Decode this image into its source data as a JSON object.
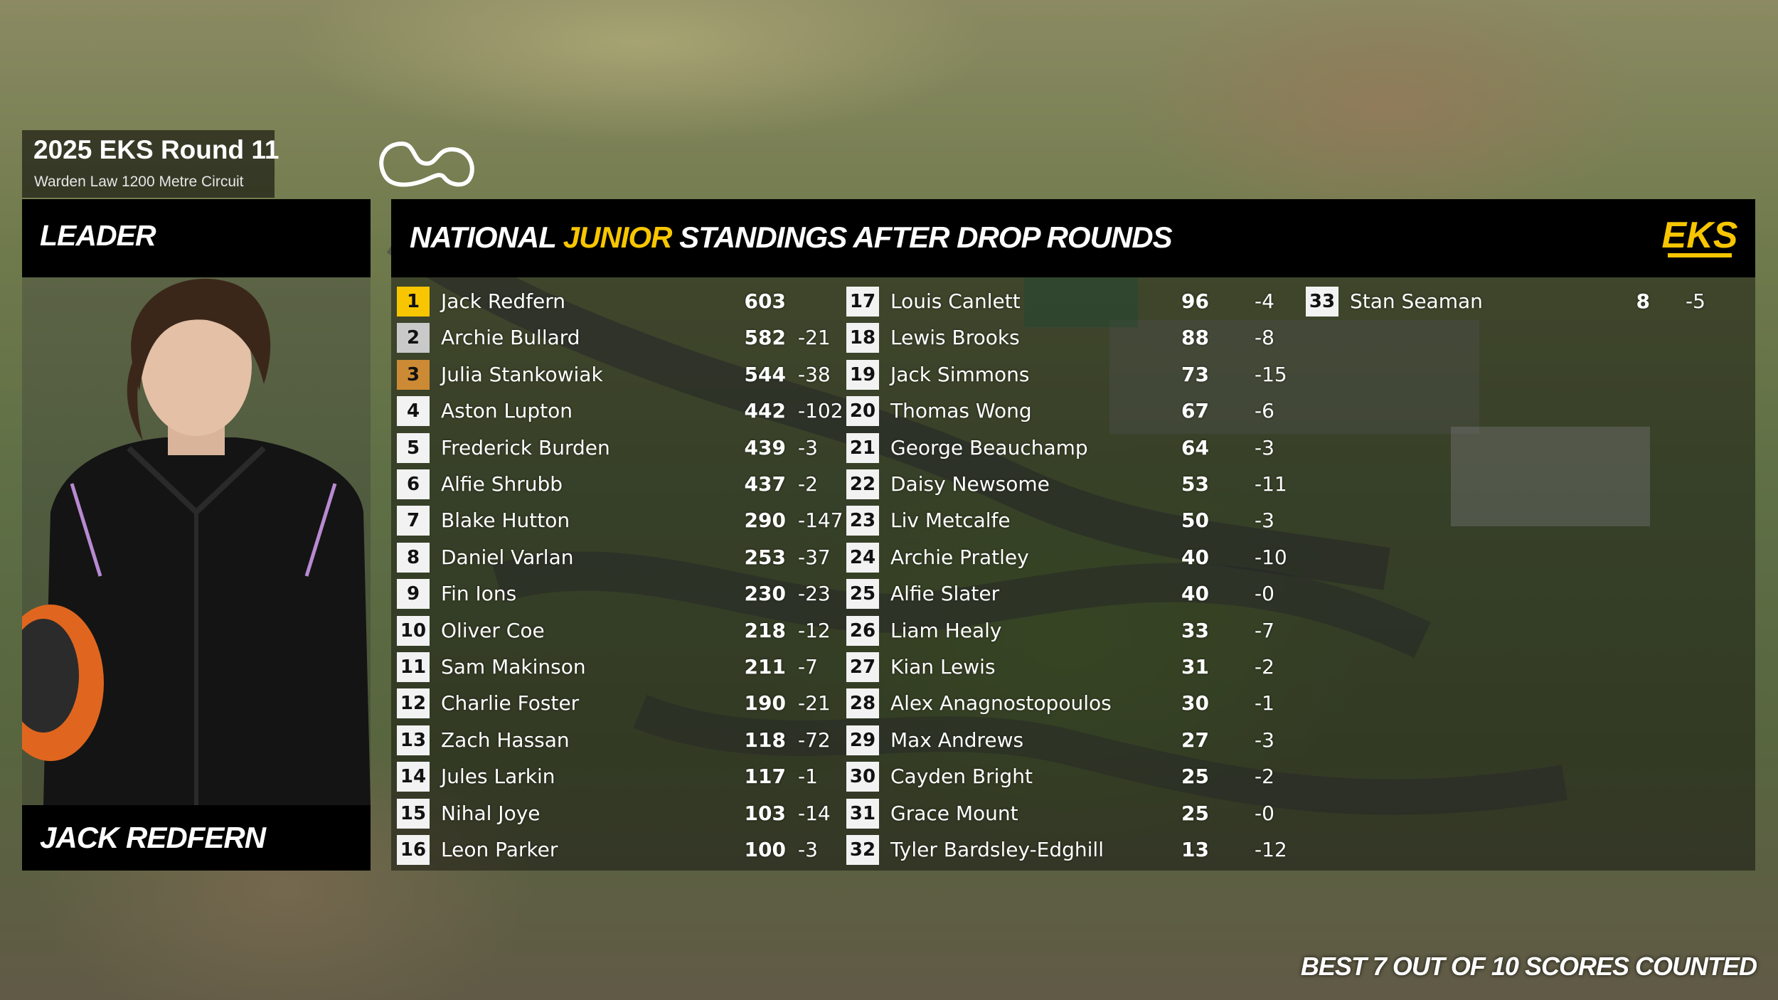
{
  "event": {
    "title": "2025 EKS Round 11",
    "subtitle": "Warden Law 1200 Metre Circuit"
  },
  "icons": {
    "circuit": "circuit-layout-icon",
    "logo": "eks-logo",
    "logo_text": "EKS"
  },
  "colors": {
    "accent": "#f7c600",
    "gold": "#f7c600",
    "silver": "#c9c9c9",
    "bronze": "#cc8a35"
  },
  "leader": {
    "label": "LEADER",
    "name": "JACK REDFERN"
  },
  "standings": {
    "title_pre": "NATIONAL ",
    "title_highlight": "JUNIOR",
    "title_post": " STANDINGS AFTER DROP ROUNDS",
    "drivers": [
      {
        "pos": "1",
        "name": "Jack Redfern",
        "points": "603",
        "drop": ""
      },
      {
        "pos": "2",
        "name": "Archie Bullard",
        "points": "582",
        "drop": "-21"
      },
      {
        "pos": "3",
        "name": "Julia Stankowiak",
        "points": "544",
        "drop": "-38"
      },
      {
        "pos": "4",
        "name": "Aston Lupton",
        "points": "442",
        "drop": "-102"
      },
      {
        "pos": "5",
        "name": "Frederick Burden",
        "points": "439",
        "drop": "-3"
      },
      {
        "pos": "6",
        "name": "Alfie Shrubb",
        "points": "437",
        "drop": "-2"
      },
      {
        "pos": "7",
        "name": "Blake Hutton",
        "points": "290",
        "drop": "-147"
      },
      {
        "pos": "8",
        "name": "Daniel Varlan",
        "points": "253",
        "drop": "-37"
      },
      {
        "pos": "9",
        "name": "Fin Ions",
        "points": "230",
        "drop": "-23"
      },
      {
        "pos": "10",
        "name": "Oliver Coe",
        "points": "218",
        "drop": "-12"
      },
      {
        "pos": "11",
        "name": "Sam Makinson",
        "points": "211",
        "drop": "-7"
      },
      {
        "pos": "12",
        "name": "Charlie Foster",
        "points": "190",
        "drop": "-21"
      },
      {
        "pos": "13",
        "name": "Zach Hassan",
        "points": "118",
        "drop": "-72"
      },
      {
        "pos": "14",
        "name": "Jules Larkin",
        "points": "117",
        "drop": "-1"
      },
      {
        "pos": "15",
        "name": "Nihal Joye",
        "points": "103",
        "drop": "-14"
      },
      {
        "pos": "16",
        "name": "Leon Parker",
        "points": "100",
        "drop": "-3"
      },
      {
        "pos": "17",
        "name": "Louis Canlett",
        "points": "96",
        "drop": "-4"
      },
      {
        "pos": "18",
        "name": "Lewis Brooks",
        "points": "88",
        "drop": "-8"
      },
      {
        "pos": "19",
        "name": "Jack Simmons",
        "points": "73",
        "drop": "-15"
      },
      {
        "pos": "20",
        "name": "Thomas Wong",
        "points": "67",
        "drop": "-6"
      },
      {
        "pos": "21",
        "name": "George Beauchamp",
        "points": "64",
        "drop": "-3"
      },
      {
        "pos": "22",
        "name": "Daisy Newsome",
        "points": "53",
        "drop": "-11"
      },
      {
        "pos": "23",
        "name": "Liv Metcalfe",
        "points": "50",
        "drop": "-3"
      },
      {
        "pos": "24",
        "name": "Archie Pratley",
        "points": "40",
        "drop": "-10"
      },
      {
        "pos": "25",
        "name": "Alfie Slater",
        "points": "40",
        "drop": "-0"
      },
      {
        "pos": "26",
        "name": "Liam Healy",
        "points": "33",
        "drop": "-7"
      },
      {
        "pos": "27",
        "name": "Kian Lewis",
        "points": "31",
        "drop": "-2"
      },
      {
        "pos": "28",
        "name": "Alex Anagnostopoulos",
        "points": "30",
        "drop": "-1"
      },
      {
        "pos": "29",
        "name": "Max Andrews",
        "points": "27",
        "drop": "-3"
      },
      {
        "pos": "30",
        "name": "Cayden Bright",
        "points": "25",
        "drop": "-2"
      },
      {
        "pos": "31",
        "name": "Grace Mount",
        "points": "25",
        "drop": "-0"
      },
      {
        "pos": "32",
        "name": "Tyler Bardsley-Edghill",
        "points": "13",
        "drop": "-12"
      },
      {
        "pos": "33",
        "name": "Stan Seaman",
        "points": "8",
        "drop": "-5"
      }
    ]
  },
  "footer": {
    "note": "BEST 7 OUT OF 10 SCORES COUNTED"
  }
}
